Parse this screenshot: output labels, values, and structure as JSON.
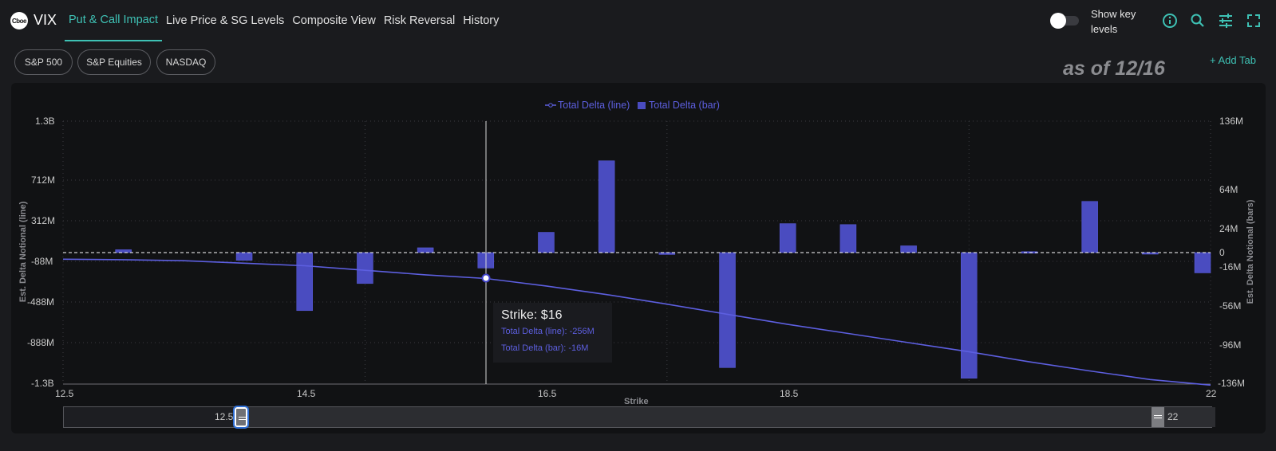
{
  "header": {
    "logo_text": "Cboe",
    "ticker": "VIX",
    "tabs": [
      {
        "label": "Put & Call Impact",
        "active": true
      },
      {
        "label": "Live Price & SG Levels",
        "active": false
      },
      {
        "label": "Composite View",
        "active": false
      },
      {
        "label": "Risk Reversal",
        "active": false
      },
      {
        "label": "History",
        "active": false
      }
    ],
    "toggle_label": "Show key levels",
    "toggle_on": false,
    "icons": [
      "info-icon",
      "search-icon",
      "sliders-icon",
      "fullscreen-icon"
    ]
  },
  "subtabs": [
    "S&P 500",
    "S&P Equities",
    "NASDAQ"
  ],
  "as_of": "as of 12/16",
  "add_tab_label": "+ Add Tab",
  "colors": {
    "accent": "#3ec1b4",
    "series": "#5d5fe0",
    "bar_fill": "#4a4cc0"
  },
  "chart_data": {
    "type": "bar+line",
    "legend": [
      "Total Delta (line)",
      "Total Delta (bar)"
    ],
    "xlabel": "Strike",
    "ylabel_left": "Est. Delta Notional (line)",
    "ylabel_right": "Est. Delta Notional (bars)",
    "x_ticks": [
      "12.5",
      "14.5",
      "16.5",
      "18.5",
      "22"
    ],
    "y_left_ticks": [
      "1.3B",
      "712M",
      "312M",
      "-88M",
      "-488M",
      "-888M",
      "-1.3B"
    ],
    "y_right_ticks": [
      "136M",
      "64M",
      "24M",
      "0",
      "-16M",
      "-56M",
      "-96M",
      "-136M"
    ],
    "strikes": [
      12.5,
      13,
      13.5,
      14,
      14.5,
      15,
      15.5,
      16,
      16.5,
      17,
      17.5,
      18,
      18.5,
      19,
      19.5,
      20,
      20.5,
      21,
      21.5,
      22
    ],
    "bar_values_M": [
      0,
      3,
      0,
      -8,
      -60,
      -32,
      5,
      -16,
      21,
      95,
      -2,
      -119,
      30,
      29,
      7,
      -130,
      1,
      53,
      -1,
      -21
    ],
    "line_values_M": [
      -65,
      -70,
      -80,
      -105,
      -130,
      -175,
      -220,
      -256,
      -330,
      -415,
      -510,
      -610,
      -710,
      -800,
      -890,
      -980,
      -1080,
      -1170,
      -1255,
      -1310
    ],
    "hover": {
      "strike": 16,
      "title": "Strike: $16",
      "line": "Total Delta (line): -256M",
      "bar": "Total Delta (bar): -16M"
    }
  },
  "range_slider": {
    "min_label": "12.5",
    "max_label": "22"
  }
}
